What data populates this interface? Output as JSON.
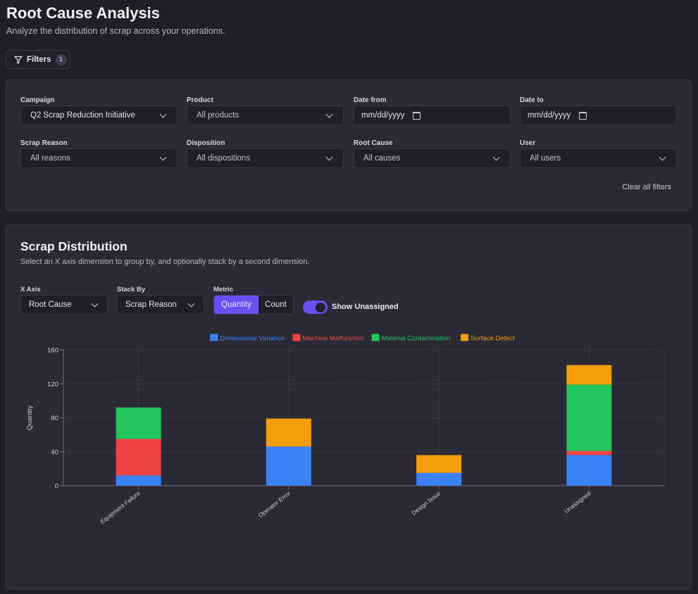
{
  "page": {
    "title": "Root Cause Analysis",
    "subtitle": "Analyze the distribution of scrap across your operations."
  },
  "filters_button": {
    "label": "Filters",
    "count": "1"
  },
  "filters": {
    "campaign": {
      "label": "Campaign",
      "value": "Q2 Scrap Reduction Initiative"
    },
    "product": {
      "label": "Product",
      "value": "All products"
    },
    "date_from": {
      "label": "Date from",
      "placeholder": "mm/dd/yyyy"
    },
    "date_to": {
      "label": "Date to",
      "placeholder": "mm/dd/yyyy"
    },
    "scrap_reason": {
      "label": "Scrap Reason",
      "value": "All reasons"
    },
    "disposition": {
      "label": "Disposition",
      "value": "All dispositions"
    },
    "root_cause": {
      "label": "Root Cause",
      "value": "All causes"
    },
    "user": {
      "label": "User",
      "value": "All users"
    },
    "clear_label": "Clear all filters"
  },
  "distribution": {
    "title": "Scrap Distribution",
    "subtitle": "Select an X axis dimension to group by, and optionally stack by a second dimension.",
    "x_axis": {
      "label": "X Axis",
      "value": "Root Cause"
    },
    "stack_by": {
      "label": "Stack By",
      "value": "Scrap Reason"
    },
    "metric": {
      "label": "Metric",
      "options": [
        "Quantity",
        "Count"
      ],
      "selected": "Quantity"
    },
    "show_unassigned": {
      "label": "Show Unassigned",
      "on": true
    }
  },
  "chart_data": {
    "type": "bar",
    "stacked": true,
    "categories": [
      "Equipment Failure",
      "Operator Error",
      "Design Issue",
      "Unassigned"
    ],
    "series": [
      {
        "name": "Dimensional Variance",
        "color": "#3b82f6",
        "values": [
          12,
          46,
          15,
          36
        ]
      },
      {
        "name": "Machine Malfunction",
        "color": "#ef4444",
        "values": [
          43,
          0,
          0,
          5
        ]
      },
      {
        "name": "Material Contamination",
        "color": "#22c55e",
        "values": [
          37,
          0,
          0,
          78
        ]
      },
      {
        "name": "Surface Defect",
        "color": "#f59e0b",
        "values": [
          0,
          33,
          21,
          23
        ]
      }
    ],
    "ylabel": "Quantity",
    "ylim": [
      0,
      160
    ],
    "yticks": [
      0,
      40,
      80,
      120,
      160
    ],
    "grid": true,
    "legend": "top-center"
  }
}
